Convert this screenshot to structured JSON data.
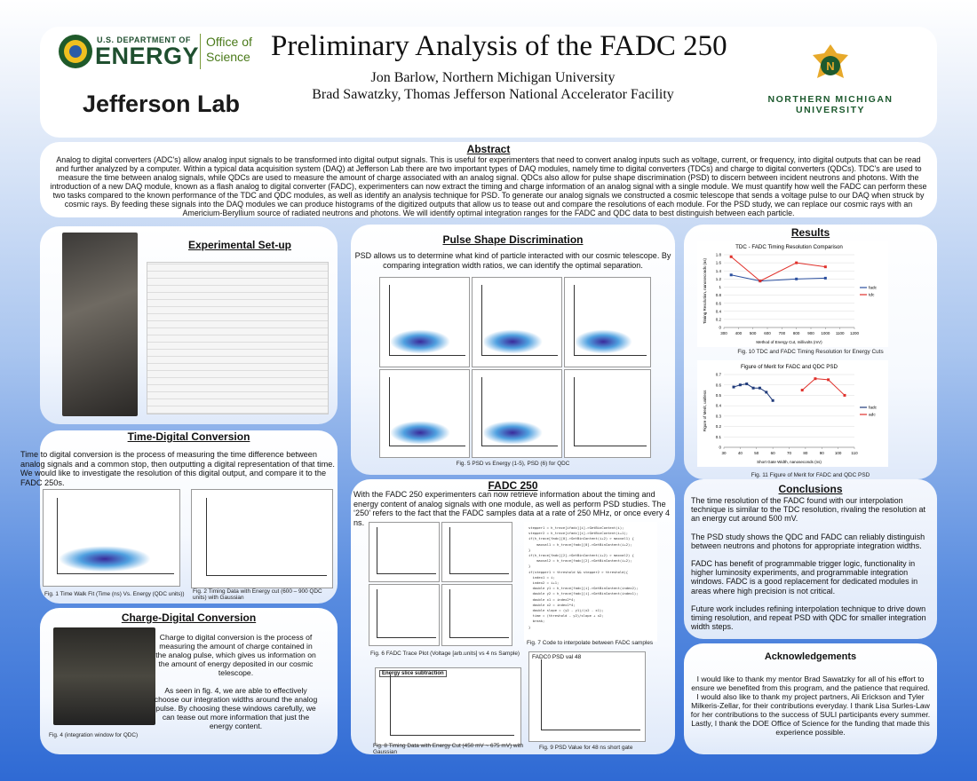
{
  "header": {
    "title": "Preliminary Analysis of the FADC 250",
    "authors": [
      "Jon Barlow, Northern Michigan University",
      "Brad Sawatzky, Thomas Jefferson National Accelerator Facility"
    ],
    "doe_top": "U.S. DEPARTMENT OF",
    "doe_main": "ENERGY",
    "office": [
      "Office of",
      "Science"
    ],
    "jlab": "Jefferson Lab",
    "nmu": [
      "NORTHERN MICHIGAN",
      "UNIVERSITY"
    ]
  },
  "abstract": {
    "heading": "Abstract",
    "text": "Analog to digital converters (ADC's) allow analog input signals to be transformed into digital output signals. This is useful for experimenters that need to convert analog inputs such as voltage, current, or frequency, into digital outputs that can be read and further analyzed by a computer. Within a typical data acquisition system (DAQ) at Jefferson Lab there are two important types of DAQ modules, namely time to digital converters (TDCs) and charge to digital converters (QDCs). TDC's are used to measure the time between analog signals, while QDCs are used to measure the amount of charge associated with an analog signal. QDCs also allow for pulse shape discrimination (PSD) to discern between incident neutrons and photons. With the introduction of a new DAQ module, known as a flash analog to digital converter (FADC), experimenters can now extract the timing and charge information of an analog signal with a single module. We must quantify how well the FADC can perform these two tasks compared to the known performance of the TDC and QDC modules, as well as identify an analysis technique for PSD. To generate our analog signals we constructed a cosmic telescope that sends a voltage pulse to our DAQ when struck by cosmic rays. By feeding these signals into the DAQ modules we can produce histograms of the digitized outputs that allow us to tease out and compare the resolutions of each module.  For the PSD study, we can replace our cosmic rays with an Americium-Beryllium source of radiated neutrons and photons. We will identify optimal integration ranges for the FADC and QDC data to best distinguish between each particle."
  },
  "setup": {
    "heading": "Experimental Set-up"
  },
  "time_digital": {
    "heading": "Time-Digital Conversion",
    "text": "Time to digital conversion is the process of measuring the time difference between analog signals and a common stop, then outputting a digital representation of that time. We would like to investigate the resolution of this digital output, and compare it to the FADC 250s.",
    "fig1_caption": "Fig. 1 Time Walk Fit (Time (ns) Vs. Energy (QDC units))",
    "fig2_caption": "Fig. 2 Timing Data with Energy cut (600 – 900 QDC units) with Gaussian"
  },
  "charge_digital": {
    "heading": "Charge-Digital Conversion",
    "text": [
      "Charge to digital conversion is the process of measuring the amount of charge contained in the analog pulse, which gives us information on the amount of energy deposited in our cosmic telescope.",
      "As seen in fig. 4, we are able to effectively choose our integration widths around the analog pulse. By choosing these windows carefully, we can tease out more information that just the energy content."
    ],
    "fig4_caption": "Fig. 4 (integration window for QDC)"
  },
  "psd": {
    "heading": "Pulse Shape Discrimination",
    "text": "PSD allows us to determine what kind of particle interacted with our cosmic telescope. By comparing integration width ratios, we can identify the optimal separation.",
    "fig5_caption": "Fig. 5 PSD vs Energy (1-5), PSD (6) for QDC"
  },
  "fadc": {
    "heading": "FADC 250",
    "text": "With the FADC 250 experimenters can now retrieve information about the timing and energy content of analog signals with one module, as well as perform PSD studies. The ‘250’ refers to the fact that the FADC samples data at a rate of 250 MHz, or once every 4 ns.",
    "code": [
      "stepper1 = h_trace[ifadc][i]->GetBinContent(i);",
      "stepper2 = h_trace[ifadc][i]->GetBinContent(i+1);",
      "if(h_trace[fadc][0]->GetBinContent(i+2) > maxval1) {",
      "    maxval1 = h_trace[fadc][0]->GetBinContent(i+2);",
      "}",
      "if(h_trace[fadc][2]->GetBinContent(i+2) > maxval2) {",
      "    maxval2 = h_trace[fadc][2]->GetBinContent(i+2);",
      "}",
      "if(stepper1 < threshold && stepper2 > threshold){",
      "  index1 = i;",
      "  index2 = i+1;",
      "  double y1 = h_trace[fadc][i]->GetBinContent(index2);",
      "  double y2 = h_trace[fadc][i]->GetBinContent(index1);",
      "  double x1 = index2*4;",
      "  double x2 = index1*4;",
      "  double slope = (y2 - y1)/(x2 - x1);",
      "  time = (threshold - y2)/slope + x2;",
      "  break;",
      "}"
    ],
    "fig6_caption": "Fig. 6 FADC Trace Plot (Voltage [arb.units] vs 4 ns Sample)",
    "fig7_caption": "Fig. 7 Code to interpolate between FADC samples",
    "fig8_title": "Energy slice subtraction",
    "fig8_caption": "Fig. 8 Timing Data with Energy Cut (450 mV ~ 675 mV)  with Gaussian",
    "fig9_title": "FADC0 PSD val 48",
    "fig9_caption": "Fig. 9 PSD Value for 48 ns short gate"
  },
  "results": {
    "heading": "Results",
    "fig10": {
      "type": "line",
      "title": "TDC - FADC Timing Resolution Comparison",
      "x_label": "Method of Energy Cut, millivolts (mV)",
      "y_label": "Timing Resolution, nanoseconds (ns)",
      "xlim": [
        300,
        1200
      ],
      "xticks": [
        300,
        400,
        500,
        600,
        700,
        800,
        900,
        1000,
        1100,
        1200
      ],
      "ylim": [
        0,
        1.8
      ],
      "yticks": [
        0,
        0.2,
        0.4,
        0.6,
        0.8,
        1,
        1.2,
        1.4,
        1.6,
        1.8
      ],
      "legend": "right",
      "series": [
        {
          "name": "fadc",
          "color": "#2b4f9e",
          "x": [
            350,
            550,
            800,
            1000
          ],
          "values": [
            1.3,
            1.15,
            1.2,
            1.22
          ]
        },
        {
          "name": "tdc",
          "color": "#e0302a",
          "x": [
            350,
            550,
            800,
            1000
          ],
          "values": [
            1.75,
            1.15,
            1.6,
            1.5
          ]
        }
      ]
    },
    "fig10_caption": "Fig. 10 TDC and FADC Timing Resolution for Energy Cuts",
    "fig11": {
      "type": "line",
      "title": "Figure of Merit for FADC and QDC PSD",
      "x_label": "Short Gate Width, nanoseconds (ns)",
      "y_label": "Figure of Merit, unitless",
      "xlim": [
        30,
        110
      ],
      "xticks": [
        30,
        40,
        50,
        60,
        70,
        80,
        90,
        100,
        110
      ],
      "ylim": [
        0,
        0.7
      ],
      "yticks": [
        0,
        0.1,
        0.2,
        0.3,
        0.4,
        0.5,
        0.6,
        0.7
      ],
      "legend": "right",
      "series": [
        {
          "name": "fadc",
          "color": "#1f3a7a",
          "x": [
            36,
            40,
            44,
            48,
            52,
            56,
            60
          ],
          "values": [
            0.58,
            0.6,
            0.61,
            0.57,
            0.57,
            0.53,
            0.45
          ]
        },
        {
          "name": "adc",
          "color": "#e0302a",
          "x": [
            78,
            86,
            94,
            104
          ],
          "values": [
            0.55,
            0.66,
            0.65,
            0.5
          ]
        }
      ]
    },
    "fig11_caption": "Fig. 11 Figure of Merit for FADC and QDC PSD"
  },
  "conclusions": {
    "heading": "Conclusions",
    "paragraphs": [
      "The time resolution of the FADC found with our interpolation technique is similar to the TDC resolution, rivaling the resolution at an energy cut around 500 mV.",
      "The PSD study shows the QDC and FADC can reliably distinguish between neutrons and photons for appropriate integration widths.",
      "FADC has benefit of programmable trigger logic, functionality in higher luminosity experiments, and programmable integration windows. FADC is a good replacement for dedicated modules in areas where high precision is not critical.",
      "Future work includes refining interpolation technique to drive down timing resolution, and repeat PSD with QDC for smaller integration width steps."
    ]
  },
  "acknowledgements": {
    "heading": "Acknowledgements",
    "text": "I would like to thank my mentor Brad Sawatzky for all of his effort to ensure we benefited from this program, and the patience that required. I would also like to thank my project partners, Ali Erickson and Tyler Milkeris-Zellar, for their contributions everyday. I thank Lisa Surles-Law for her contributions to the success of SULI participants every summer. Lastly, I thank the DOE Office of Science for the funding that made this experience possible."
  }
}
